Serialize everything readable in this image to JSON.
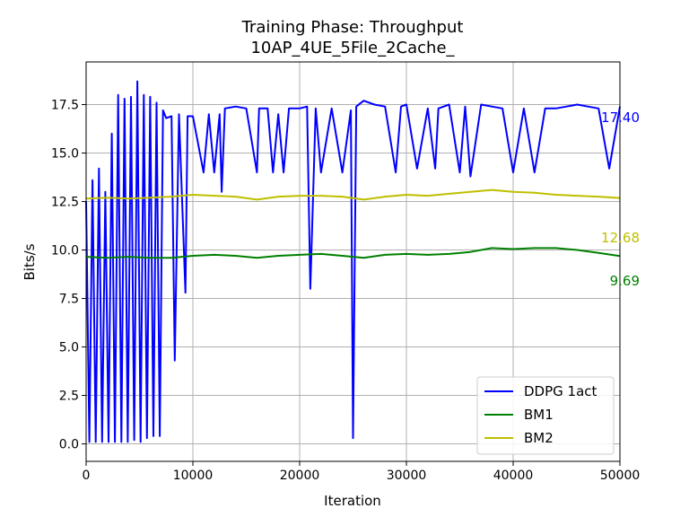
{
  "chart_data": {
    "type": "line",
    "title": "Training Phase: Throughput",
    "subtitle": "10AP_4UE_5File_2Cache_",
    "xlabel": "Iteration",
    "ylabel": "Bits/s",
    "xlim": [
      0,
      50000
    ],
    "ylim": [
      -0.9,
      19.7
    ],
    "xticks": [
      0,
      10000,
      20000,
      30000,
      40000,
      50000
    ],
    "xtick_labels": [
      "0",
      "10000",
      "20000",
      "30000",
      "40000",
      "50000"
    ],
    "yticks": [
      0.0,
      2.5,
      5.0,
      7.5,
      10.0,
      12.5,
      15.0,
      17.5
    ],
    "ytick_labels": [
      "0.0",
      "2.5",
      "5.0",
      "7.5",
      "10.0",
      "12.5",
      "15.0",
      "17.5"
    ],
    "grid": true,
    "legend_position": "lower-right",
    "series": [
      {
        "name": "DDPG 1act",
        "color": "#0000ff",
        "final_label": "17.40",
        "x": [
          0,
          300,
          600,
          900,
          1200,
          1500,
          1800,
          2100,
          2400,
          2700,
          3000,
          3300,
          3600,
          3900,
          4200,
          4500,
          4800,
          5100,
          5400,
          5700,
          6000,
          6300,
          6600,
          6900,
          7200,
          7500,
          8000,
          8300,
          8700,
          9300,
          9500,
          10000,
          11000,
          11500,
          12000,
          12500,
          12700,
          13000,
          14000,
          15000,
          16000,
          16200,
          17000,
          17500,
          18000,
          18500,
          19000,
          20000,
          20700,
          21000,
          21500,
          22000,
          23000,
          24000,
          24800,
          25000,
          25300,
          26000,
          27000,
          28000,
          29000,
          29500,
          30000,
          31000,
          32000,
          32700,
          33000,
          34000,
          35000,
          35500,
          36000,
          37000,
          38000,
          39000,
          40000,
          41000,
          42000,
          43000,
          44000,
          45000,
          46000,
          47000,
          48000,
          49000,
          50000
        ],
        "y": [
          12.5,
          0.1,
          13.6,
          0.1,
          14.2,
          0.1,
          13.0,
          0.1,
          16.0,
          0.1,
          18.0,
          0.1,
          17.8,
          0.1,
          17.9,
          0.2,
          18.7,
          0.1,
          18.0,
          0.3,
          17.9,
          0.4,
          17.6,
          0.4,
          17.2,
          16.8,
          16.9,
          4.3,
          17.0,
          7.8,
          16.9,
          16.9,
          14.0,
          17.0,
          14.0,
          17.0,
          13.0,
          17.3,
          17.4,
          17.3,
          14.0,
          17.3,
          17.3,
          14.0,
          17.0,
          14.0,
          17.3,
          17.3,
          17.4,
          8.0,
          17.3,
          14.0,
          17.3,
          14.0,
          17.2,
          0.3,
          17.4,
          17.7,
          17.5,
          17.4,
          14.0,
          17.4,
          17.5,
          14.2,
          17.3,
          14.2,
          17.3,
          17.5,
          14.0,
          17.4,
          13.8,
          17.5,
          17.4,
          17.3,
          14.0,
          17.3,
          14.0,
          17.3,
          17.3,
          17.4,
          17.5,
          17.4,
          17.3,
          14.2,
          17.4
        ]
      },
      {
        "name": "BM1",
        "color": "#008000",
        "final_label": "9.69",
        "x": [
          0,
          2000,
          4000,
          6000,
          8000,
          10000,
          12000,
          14000,
          16000,
          18000,
          20000,
          22000,
          24000,
          26000,
          28000,
          30000,
          32000,
          34000,
          36000,
          38000,
          40000,
          42000,
          44000,
          46000,
          48000,
          50000
        ],
        "y": [
          9.65,
          9.6,
          9.65,
          9.6,
          9.6,
          9.7,
          9.75,
          9.7,
          9.6,
          9.7,
          9.75,
          9.8,
          9.7,
          9.6,
          9.75,
          9.8,
          9.75,
          9.8,
          9.9,
          10.1,
          10.05,
          10.1,
          10.1,
          10.0,
          9.85,
          9.69
        ]
      },
      {
        "name": "BM2",
        "color": "#bfbf00",
        "final_label": "12.68",
        "x": [
          0,
          2000,
          4000,
          6000,
          8000,
          10000,
          12000,
          14000,
          16000,
          18000,
          20000,
          22000,
          24000,
          26000,
          28000,
          30000,
          32000,
          34000,
          36000,
          38000,
          40000,
          42000,
          44000,
          46000,
          48000,
          50000
        ],
        "y": [
          12.65,
          12.7,
          12.65,
          12.7,
          12.75,
          12.85,
          12.8,
          12.75,
          12.6,
          12.75,
          12.8,
          12.8,
          12.75,
          12.6,
          12.75,
          12.85,
          12.8,
          12.9,
          13.0,
          13.1,
          13.0,
          12.95,
          12.85,
          12.8,
          12.75,
          12.68
        ]
      }
    ]
  }
}
